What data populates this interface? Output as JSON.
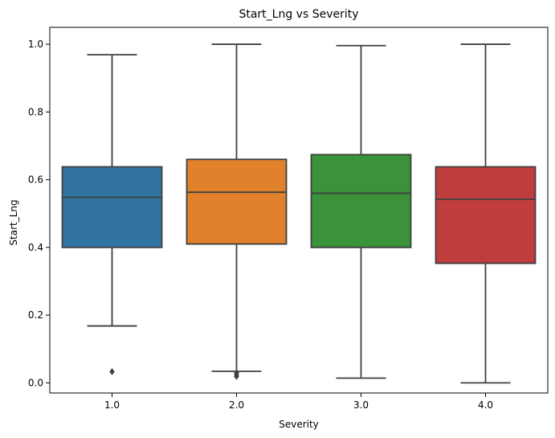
{
  "chart_data": {
    "type": "box",
    "title": "Start_Lng vs Severity",
    "xlabel": "Severity",
    "ylabel": "Start_Lng",
    "ylim": [
      -0.03,
      1.05
    ],
    "yticks": [
      "0.0",
      "0.2",
      "0.4",
      "0.6",
      "0.8",
      "1.0"
    ],
    "grid": false,
    "categories": [
      "1.0",
      "2.0",
      "3.0",
      "4.0"
    ],
    "series": [
      {
        "category": "1.0",
        "color": "#3274a1",
        "whisker_low": 0.168,
        "q1": 0.4,
        "median": 0.548,
        "q3": 0.638,
        "whisker_high": 0.969,
        "outliers": [
          0.033
        ]
      },
      {
        "category": "2.0",
        "color": "#e1812c",
        "whisker_low": 0.034,
        "q1": 0.41,
        "median": 0.563,
        "q3": 0.66,
        "whisker_high": 1.0,
        "outliers": [
          0.03,
          0.024,
          0.019
        ]
      },
      {
        "category": "3.0",
        "color": "#3a923a",
        "whisker_low": 0.014,
        "q1": 0.4,
        "median": 0.56,
        "q3": 0.674,
        "whisker_high": 0.996,
        "outliers": []
      },
      {
        "category": "4.0",
        "color": "#c03d3e",
        "whisker_low": 0.0,
        "q1": 0.353,
        "median": 0.542,
        "q3": 0.638,
        "whisker_high": 1.0,
        "outliers": []
      }
    ]
  }
}
